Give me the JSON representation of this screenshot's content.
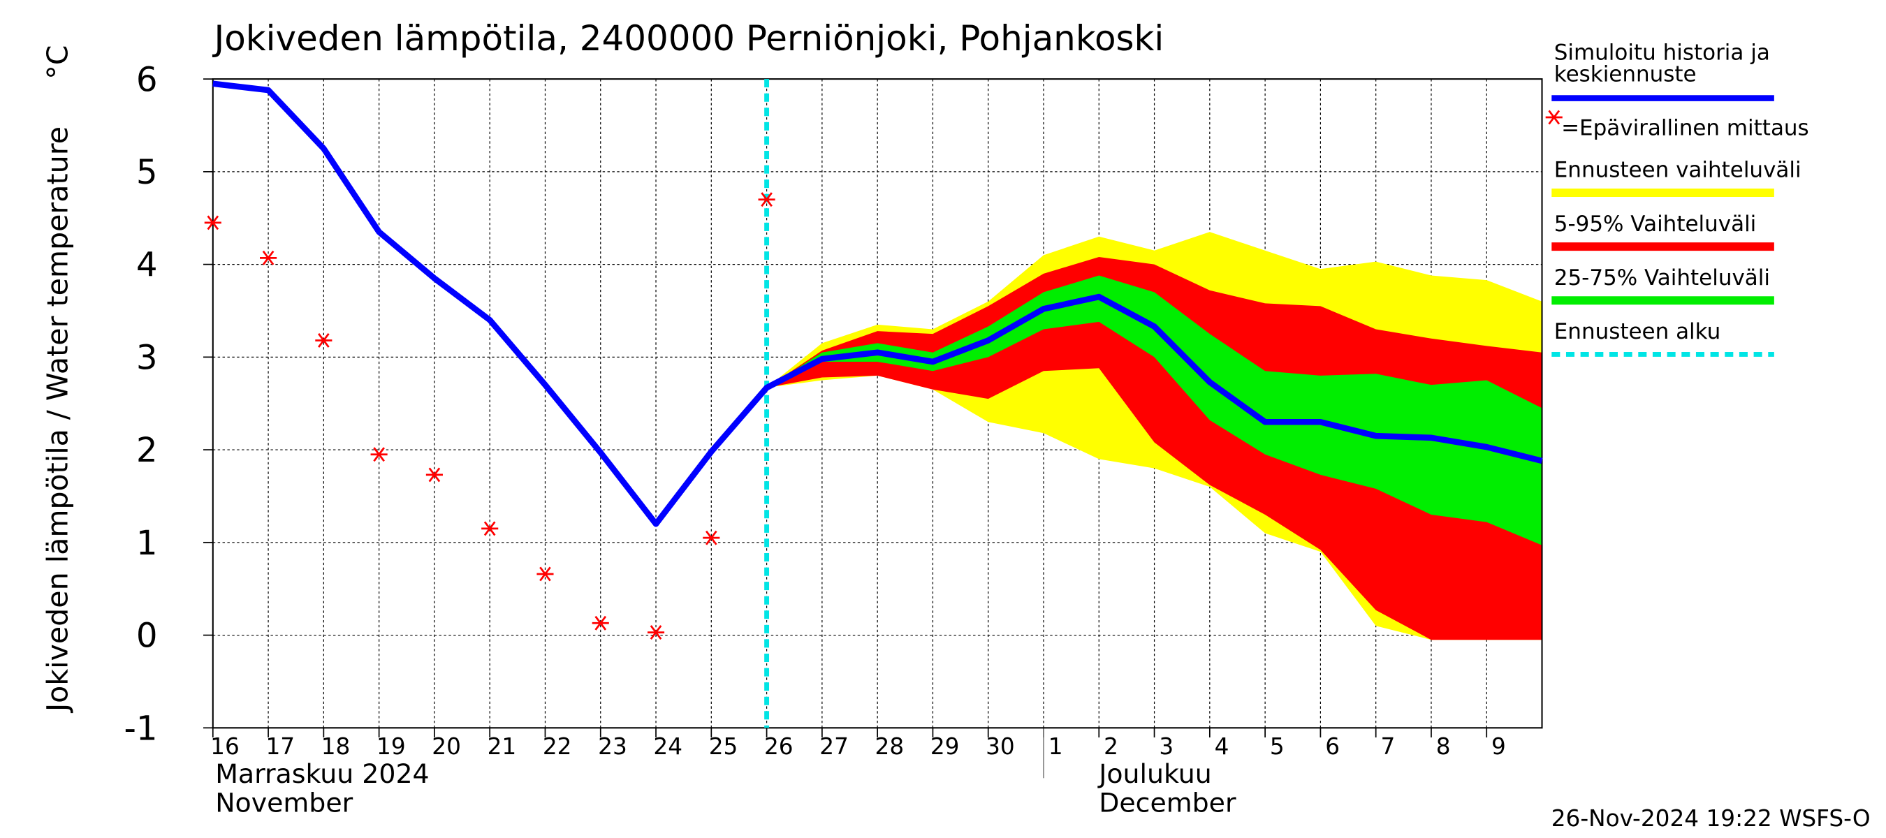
{
  "chart_data": {
    "type": "line",
    "title": "Jokiveden lämpötila, 2400000 Perniönjoki, Pohjankoski",
    "y_label": "Jokiveden lämpötila / Water temperature",
    "y_unit": "°C",
    "x": [
      "2024-11-16",
      "2024-11-17",
      "2024-11-18",
      "2024-11-19",
      "2024-11-20",
      "2024-11-21",
      "2024-11-22",
      "2024-11-23",
      "2024-11-24",
      "2024-11-25",
      "2024-11-26",
      "2024-11-27",
      "2024-11-28",
      "2024-11-29",
      "2024-11-30",
      "2024-12-01",
      "2024-12-02",
      "2024-12-03",
      "2024-12-04",
      "2024-12-05",
      "2024-12-06",
      "2024-12-07",
      "2024-12-08",
      "2024-12-09",
      "2024-12-10"
    ],
    "xlim": [
      "2024-11-16",
      "2024-12-10"
    ],
    "xticks": [
      {
        "value": "2024-11-16",
        "label": "16"
      },
      {
        "value": "2024-11-17",
        "label": "17"
      },
      {
        "value": "2024-11-18",
        "label": "18"
      },
      {
        "value": "2024-11-19",
        "label": "19"
      },
      {
        "value": "2024-11-20",
        "label": "20"
      },
      {
        "value": "2024-11-21",
        "label": "21"
      },
      {
        "value": "2024-11-22",
        "label": "22"
      },
      {
        "value": "2024-11-23",
        "label": "23"
      },
      {
        "value": "2024-11-24",
        "label": "24"
      },
      {
        "value": "2024-11-25",
        "label": "25"
      },
      {
        "value": "2024-11-26",
        "label": "26"
      },
      {
        "value": "2024-11-27",
        "label": "27"
      },
      {
        "value": "2024-11-28",
        "label": "28"
      },
      {
        "value": "2024-11-29",
        "label": "29"
      },
      {
        "value": "2024-11-30",
        "label": "30"
      },
      {
        "value": "2024-12-01",
        "label": "1"
      },
      {
        "value": "2024-12-02",
        "label": "2"
      },
      {
        "value": "2024-12-03",
        "label": "3"
      },
      {
        "value": "2024-12-04",
        "label": "4"
      },
      {
        "value": "2024-12-05",
        "label": "5"
      },
      {
        "value": "2024-12-06",
        "label": "6"
      },
      {
        "value": "2024-12-07",
        "label": "7"
      },
      {
        "value": "2024-12-08",
        "label": "8"
      },
      {
        "value": "2024-12-09",
        "label": "9"
      }
    ],
    "months": [
      {
        "value": "2024-11-16",
        "lines": [
          "Marraskuu 2024",
          "November"
        ]
      },
      {
        "value": "2024-12-01",
        "lines": [
          "Joulukuu",
          "December"
        ]
      }
    ],
    "ylim": [
      -1,
      6
    ],
    "yticks": [
      -1,
      0,
      1,
      2,
      3,
      4,
      5,
      6
    ],
    "grid": true,
    "forecast_start": {
      "name": "Ennusteen alku",
      "value": "2024-11-26",
      "color": "#00e5e5"
    },
    "bands": [
      {
        "name": "Ennusteen vaihteluväli",
        "color": "#ffff00",
        "upper": [
          null,
          null,
          null,
          null,
          null,
          null,
          null,
          null,
          null,
          null,
          2.67,
          3.15,
          3.35,
          3.3,
          3.6,
          4.1,
          4.3,
          4.15,
          4.35,
          4.15,
          3.95,
          4.03,
          3.88,
          3.83,
          3.6
        ],
        "lower": [
          null,
          null,
          null,
          null,
          null,
          null,
          null,
          null,
          null,
          null,
          2.67,
          2.75,
          2.8,
          2.65,
          2.3,
          2.18,
          1.9,
          1.8,
          1.6,
          1.1,
          0.9,
          0.1,
          -0.05,
          -0.05,
          -0.05
        ]
      },
      {
        "name": "5-95% Vaihteluväli",
        "color": "#ff0000",
        "upper": [
          null,
          null,
          null,
          null,
          null,
          null,
          null,
          null,
          null,
          null,
          2.67,
          3.07,
          3.28,
          3.25,
          3.55,
          3.9,
          4.08,
          4.0,
          3.72,
          3.58,
          3.55,
          3.3,
          3.2,
          3.12,
          3.05
        ],
        "lower": [
          null,
          null,
          null,
          null,
          null,
          null,
          null,
          null,
          null,
          null,
          2.67,
          2.78,
          2.8,
          2.65,
          2.55,
          2.85,
          2.88,
          2.08,
          1.62,
          1.3,
          0.92,
          0.27,
          -0.05,
          -0.05,
          -0.05
        ]
      },
      {
        "name": "25-75% Vaihteluväli",
        "color": "#00ee00",
        "upper": [
          null,
          null,
          null,
          null,
          null,
          null,
          null,
          null,
          null,
          null,
          2.67,
          3.05,
          3.15,
          3.05,
          3.33,
          3.7,
          3.88,
          3.7,
          3.25,
          2.85,
          2.8,
          2.82,
          2.7,
          2.75,
          2.45
        ],
        "lower": [
          null,
          null,
          null,
          null,
          null,
          null,
          null,
          null,
          null,
          null,
          2.67,
          2.95,
          2.95,
          2.85,
          3.0,
          3.3,
          3.38,
          3.0,
          2.32,
          1.95,
          1.73,
          1.58,
          1.3,
          1.22,
          0.97
        ]
      }
    ],
    "series": [
      {
        "name": [
          "Simuloitu historia ja",
          "keskiennuste"
        ],
        "color": "#0000ff",
        "values": [
          5.95,
          5.88,
          5.25,
          4.35,
          3.85,
          3.4,
          2.7,
          1.97,
          1.2,
          1.98,
          2.67,
          2.98,
          3.05,
          2.95,
          3.18,
          3.52,
          3.65,
          3.33,
          2.73,
          2.3,
          2.3,
          2.15,
          2.13,
          2.03,
          1.88
        ]
      }
    ],
    "measurements": {
      "name": "=Epävirallinen mittaus",
      "color": "#ff0000",
      "values": [
        4.45,
        4.07,
        3.18,
        1.95,
        1.73,
        1.15,
        0.66,
        0.13,
        0.03,
        1.05,
        4.7,
        null,
        null,
        null,
        null,
        null,
        null,
        null,
        null,
        null,
        null,
        null,
        null,
        null,
        null
      ]
    },
    "footer": "26-Nov-2024 19:22 WSFS-O"
  }
}
